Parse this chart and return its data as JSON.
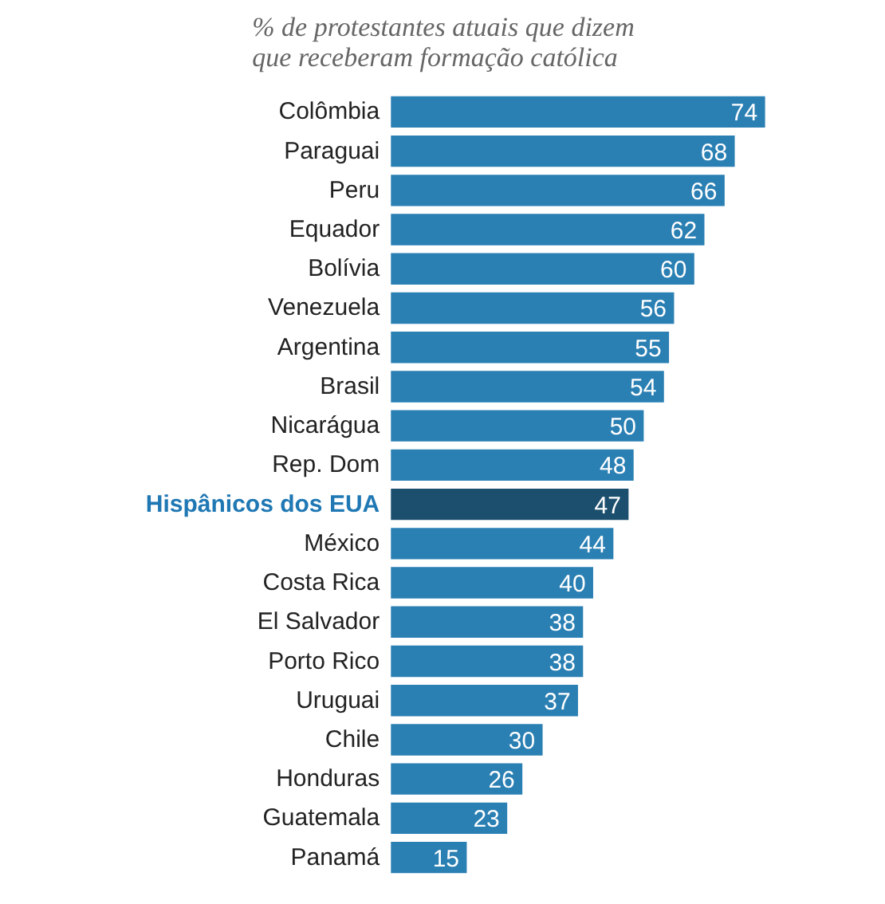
{
  "chart_data": {
    "type": "bar",
    "orientation": "horizontal",
    "title": "% de protestantes atuais que dizem que receberam formação católica",
    "categories": [
      "Colômbia",
      "Paraguai",
      "Peru",
      "Equador",
      "Bolívia",
      "Venezuela",
      "Argentina",
      "Brasil",
      "Nicarágua",
      "Rep. Dom",
      "Hispânicos dos EUA",
      "México",
      "Costa Rica",
      "El Salvador",
      "Porto Rico",
      "Uruguai",
      "Chile",
      "Honduras",
      "Guatemala",
      "Panamá"
    ],
    "values": [
      74,
      68,
      66,
      62,
      60,
      56,
      55,
      54,
      50,
      48,
      47,
      44,
      40,
      38,
      38,
      37,
      30,
      26,
      23,
      15
    ],
    "colors": [
      "#2a7fb3",
      "#2a7fb3",
      "#2a7fb3",
      "#2a7fb3",
      "#2a7fb3",
      "#2a7fb3",
      "#2a7fb3",
      "#2a7fb3",
      "#2a7fb3",
      "#2a7fb3",
      "#1c4f6e",
      "#2a7fb3",
      "#2a7fb3",
      "#2a7fb3",
      "#2a7fb3",
      "#2a7fb3",
      "#2a7fb3",
      "#2a7fb3",
      "#2a7fb3",
      "#2a7fb3"
    ],
    "data_labels": true
  }
}
